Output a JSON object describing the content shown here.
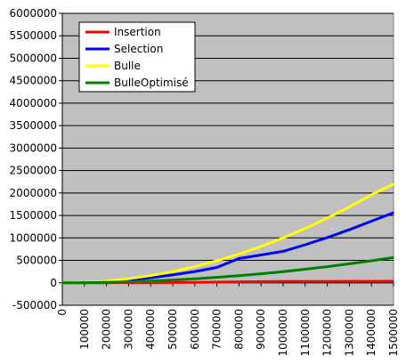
{
  "chart_data": {
    "type": "line",
    "title": "",
    "xlabel": "",
    "ylabel": "",
    "x": [
      0,
      100000,
      200000,
      300000,
      400000,
      500000,
      600000,
      700000,
      800000,
      900000,
      1000000,
      1100000,
      1200000,
      1300000,
      1400000,
      1500000
    ],
    "x_tick_labels": [
      "0",
      "100000",
      "200000",
      "300000",
      "400000",
      "500000",
      "600000",
      "700000",
      "800000",
      "900000",
      "1000000",
      "1100000",
      "1200000",
      "1300000",
      "1400000",
      "1500000"
    ],
    "ylim": [
      -500000,
      6000000
    ],
    "y_tick_labels": [
      "-500000",
      "0",
      "500000",
      "1000000",
      "1500000",
      "2000000",
      "2500000",
      "3000000",
      "3500000",
      "4000000",
      "4500000",
      "5000000",
      "5500000",
      "6000000"
    ],
    "y_ticks": [
      -500000,
      0,
      500000,
      1000000,
      1500000,
      2000000,
      2500000,
      3000000,
      3500000,
      4000000,
      4500000,
      5000000,
      5500000,
      6000000
    ],
    "grid": true,
    "legend_position": "top-left",
    "plot_background": "#c0c0c0",
    "series": [
      {
        "name": "Insertion",
        "color": "#ff0000",
        "values": [
          0,
          300,
          1200,
          2700,
          4800,
          7500,
          10800,
          14700,
          19200,
          24300,
          30000,
          31000,
          32000,
          33000,
          34000,
          35000
        ]
      },
      {
        "name": "Selection",
        "color": "#0000ff",
        "values": [
          0,
          7000,
          28000,
          63000,
          112000,
          175000,
          252000,
          343000,
          540000,
          620000,
          700000,
          847000,
          1008000,
          1183000,
          1372000,
          1560000
        ]
      },
      {
        "name": "Bulle",
        "color": "#ffff00",
        "values": [
          0,
          10000,
          40000,
          90000,
          160000,
          250000,
          360000,
          490000,
          640000,
          810000,
          1000000,
          1210000,
          1440000,
          1690000,
          1960000,
          2200000
        ]
      },
      {
        "name": "BulleOptimisé",
        "color": "#008000",
        "values": [
          0,
          2500,
          10000,
          22500,
          40000,
          62500,
          90000,
          122500,
          160000,
          202500,
          250000,
          302500,
          360000,
          422500,
          490000,
          565000
        ]
      }
    ]
  }
}
